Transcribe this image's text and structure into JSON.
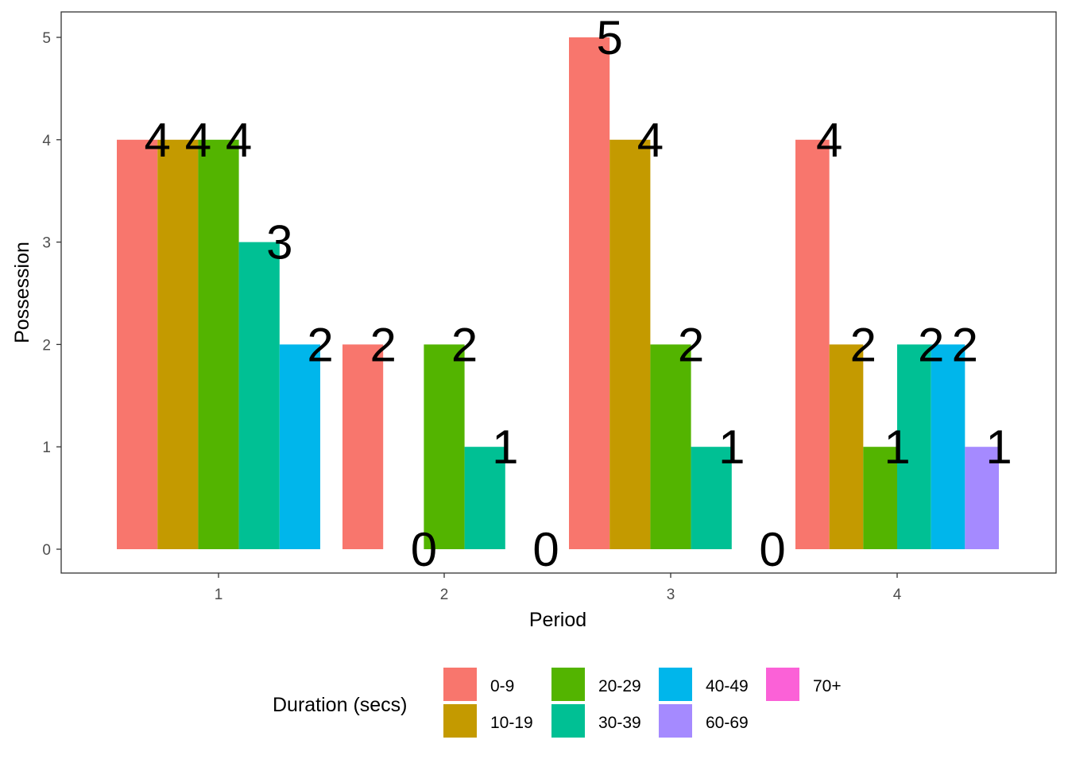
{
  "chart_data": {
    "type": "bar",
    "title": "",
    "xlabel": "Period",
    "ylabel": "Possession",
    "categories": [
      "1",
      "2",
      "3",
      "4"
    ],
    "yticks": [
      "0",
      "1",
      "2",
      "3",
      "4",
      "5"
    ],
    "ylim": [
      0,
      5
    ],
    "grid": false,
    "legend": {
      "title": "Duration (secs)",
      "position": "bottom",
      "entries": [
        {
          "label": "0-9",
          "color": "#F8766D"
        },
        {
          "label": "10-19",
          "color": "#C49A00"
        },
        {
          "label": "20-29",
          "color": "#53B400"
        },
        {
          "label": "30-39",
          "color": "#00C094"
        },
        {
          "label": "40-49",
          "color": "#00B6EB"
        },
        {
          "label": "60-69",
          "color": "#A58AFF"
        },
        {
          "label": "70+",
          "color": "#FB61D7"
        }
      ]
    },
    "groups": [
      {
        "period": "1",
        "bars": [
          {
            "series": "0-9",
            "value": 4,
            "label": "4"
          },
          {
            "series": "10-19",
            "value": 4,
            "label": "4"
          },
          {
            "series": "20-29",
            "value": 4,
            "label": "4"
          },
          {
            "series": "30-39",
            "value": 3,
            "label": "3"
          },
          {
            "series": "40-49",
            "value": 2,
            "label": "2"
          }
        ]
      },
      {
        "period": "2",
        "bars": [
          {
            "series": "0-9",
            "value": 2,
            "label": "2"
          },
          {
            "series": "10-19",
            "value": 0,
            "label": "0"
          },
          {
            "series": "20-29",
            "value": 2,
            "label": "2"
          },
          {
            "series": "30-39",
            "value": 1,
            "label": "1"
          },
          {
            "series": "40-49",
            "value": 0,
            "label": "0"
          }
        ]
      },
      {
        "period": "3",
        "bars": [
          {
            "series": "0-9",
            "value": 5,
            "label": "5"
          },
          {
            "series": "10-19",
            "value": 4,
            "label": "4"
          },
          {
            "series": "20-29",
            "value": 2,
            "label": "2"
          },
          {
            "series": "30-39",
            "value": 1,
            "label": "1"
          },
          {
            "series": "40-49",
            "value": 0,
            "label": "0"
          }
        ]
      },
      {
        "period": "4",
        "bars": [
          {
            "series": "0-9",
            "value": 4,
            "label": "4"
          },
          {
            "series": "10-19",
            "value": 2,
            "label": "2"
          },
          {
            "series": "20-29",
            "value": 1,
            "label": "1"
          },
          {
            "series": "30-39",
            "value": 2,
            "label": "2"
          },
          {
            "series": "40-49",
            "value": 2,
            "label": "2"
          },
          {
            "series": "60-69",
            "value": 1,
            "label": "1"
          }
        ]
      }
    ]
  }
}
